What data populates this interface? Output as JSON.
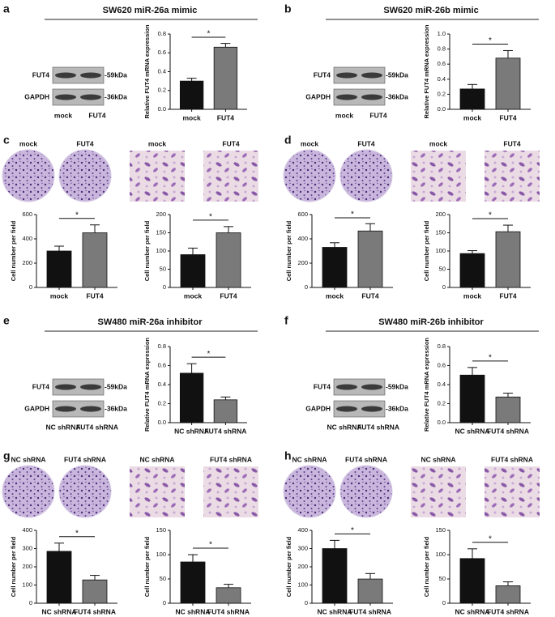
{
  "panels": [
    {
      "letter": "a",
      "title": "SW620 miR-26a mimic",
      "bands": [
        "FUT4",
        "GAPDH"
      ],
      "sizes": [
        "-59kDa",
        "-36kDa"
      ],
      "lanes": [
        "mock",
        "FUT4"
      ]
    },
    {
      "letter": "b",
      "title": "SW620 miR-26b mimic",
      "bands": [
        "FUT4",
        "GAPDH"
      ],
      "sizes": [
        "-59kDa",
        "-36kDa"
      ],
      "lanes": [
        "mock",
        "FUT4"
      ]
    },
    {
      "letter": "c",
      "image_labels": [
        "mock",
        "FUT4",
        "mock",
        "FUT4"
      ]
    },
    {
      "letter": "d",
      "image_labels": [
        "mock",
        "FUT4",
        "mock",
        "FUT4"
      ]
    },
    {
      "letter": "e",
      "title": "SW480 miR-26a inhibitor",
      "bands": [
        "FUT4",
        "GAPDH"
      ],
      "sizes": [
        "-59kDa",
        "-36kDa"
      ],
      "lanes": [
        "NC shRNA",
        "FUT4 shRNA"
      ]
    },
    {
      "letter": "f",
      "title": "SW480 miR-26b inhibitor",
      "bands": [
        "FUT4",
        "GAPDH"
      ],
      "sizes": [
        "-59kDa",
        "-36kDa"
      ],
      "lanes": [
        "NC shRNA",
        "FUT4 shRNA"
      ]
    },
    {
      "letter": "g",
      "image_labels": [
        "NC shRNA",
        "FUT4 shRNA",
        "NC shRNA",
        "FUT4 shRNA"
      ]
    },
    {
      "letter": "h",
      "image_labels": [
        "NC shRNA",
        "FUT4 shRNA",
        "NC shRNA",
        "FUT4 shRNA"
      ]
    }
  ],
  "chart_data": [
    {
      "type": "bar",
      "ylabel": "Relative FUT4 mRNA expression",
      "categories": [
        "mock",
        "FUT4"
      ],
      "values": [
        0.3,
        0.66
      ],
      "errors": [
        0.03,
        0.04
      ],
      "colors": [
        "#111111",
        "#7a7a7a"
      ],
      "annotation": "*",
      "ylim": [
        0,
        0.8
      ],
      "yticks": [
        {
          "value": 0,
          "label": "0.0"
        },
        {
          "value": 0.2,
          "label": "0.2"
        },
        {
          "value": 0.4,
          "label": "0.4"
        },
        {
          "value": 0.6,
          "label": "0.6"
        },
        {
          "value": 0.8,
          "label": "0.8"
        }
      ]
    },
    {
      "type": "bar",
      "ylabel": "Relative FUT4 mRNA expression",
      "categories": [
        "mock",
        "FUT4"
      ],
      "values": [
        0.27,
        0.68
      ],
      "errors": [
        0.06,
        0.1
      ],
      "colors": [
        "#111111",
        "#7a7a7a"
      ],
      "annotation": "*",
      "ylim": [
        0,
        1.0
      ],
      "yticks": [
        {
          "value": 0,
          "label": "0.0"
        },
        {
          "value": 0.2,
          "label": "0.2"
        },
        {
          "value": 0.4,
          "label": "0.4"
        },
        {
          "value": 0.6,
          "label": "0.6"
        },
        {
          "value": 0.8,
          "label": "0.8"
        },
        {
          "value": 1.0,
          "label": "1.0"
        }
      ]
    },
    {
      "type": "bar",
      "ylabel": "Cell number per field",
      "categories": [
        "mock",
        "FUT4"
      ],
      "values": [
        300,
        450
      ],
      "errors": [
        40,
        65
      ],
      "colors": [
        "#111111",
        "#7a7a7a"
      ],
      "annotation": "*",
      "ylim": [
        0,
        600
      ],
      "yticks": [
        0,
        200,
        400,
        600
      ]
    },
    {
      "type": "bar",
      "ylabel": "Cell number per field",
      "categories": [
        "mock",
        "FUT4"
      ],
      "values": [
        90,
        150
      ],
      "errors": [
        18,
        17
      ],
      "colors": [
        "#111111",
        "#7a7a7a"
      ],
      "annotation": "*",
      "ylim": [
        0,
        200
      ],
      "yticks": [
        0,
        50,
        100,
        150,
        200
      ]
    },
    {
      "type": "bar",
      "ylabel": "Cell number per field",
      "categories": [
        "mock",
        "FUT4"
      ],
      "values": [
        330,
        465
      ],
      "errors": [
        38,
        60
      ],
      "colors": [
        "#111111",
        "#7a7a7a"
      ],
      "annotation": "*",
      "ylim": [
        0,
        600
      ],
      "yticks": [
        0,
        200,
        400,
        600
      ]
    },
    {
      "type": "bar",
      "ylabel": "Cell number per field",
      "categories": [
        "mock",
        "FUT4"
      ],
      "values": [
        93,
        153
      ],
      "errors": [
        8,
        18
      ],
      "colors": [
        "#111111",
        "#7a7a7a"
      ],
      "annotation": "*",
      "ylim": [
        0,
        200
      ],
      "yticks": [
        0,
        50,
        100,
        150,
        200
      ]
    },
    {
      "type": "bar",
      "ylabel": "Relative FUT4 mRNA expression",
      "categories": [
        "NC shRNA",
        "FUT4 shRNA"
      ],
      "values": [
        0.52,
        0.24
      ],
      "errors": [
        0.1,
        0.03
      ],
      "colors": [
        "#111111",
        "#7a7a7a"
      ],
      "annotation": "*",
      "ylim": [
        0,
        0.8
      ],
      "yticks": [
        {
          "value": 0,
          "label": "0.0"
        },
        {
          "value": 0.2,
          "label": "0.2"
        },
        {
          "value": 0.4,
          "label": "0.4"
        },
        {
          "value": 0.6,
          "label": "0.6"
        },
        {
          "value": 0.8,
          "label": "0.8"
        }
      ]
    },
    {
      "type": "bar",
      "ylabel": "Relative FUT4 mRNA expression",
      "categories": [
        "NC shRNA",
        "FUT4 shRNA"
      ],
      "values": [
        0.5,
        0.27
      ],
      "errors": [
        0.08,
        0.04
      ],
      "colors": [
        "#111111",
        "#7a7a7a"
      ],
      "annotation": "*",
      "ylim": [
        0,
        0.8
      ],
      "yticks": [
        {
          "value": 0,
          "label": "0.0"
        },
        {
          "value": 0.2,
          "label": "0.2"
        },
        {
          "value": 0.4,
          "label": "0.4"
        },
        {
          "value": 0.6,
          "label": "0.6"
        },
        {
          "value": 0.8,
          "label": "0.8"
        }
      ]
    },
    {
      "type": "bar",
      "ylabel": "Cell number per field",
      "categories": [
        "NC shRNA",
        "FUT4 shRNA"
      ],
      "values": [
        285,
        128
      ],
      "errors": [
        45,
        25
      ],
      "colors": [
        "#111111",
        "#7a7a7a"
      ],
      "annotation": "*",
      "ylim": [
        0,
        400
      ],
      "yticks": [
        0,
        100,
        200,
        300,
        400
      ]
    },
    {
      "type": "bar",
      "ylabel": "Cell number per field",
      "categories": [
        "NC shRNA",
        "FUT4 shRNA"
      ],
      "values": [
        85,
        32
      ],
      "errors": [
        15,
        7
      ],
      "colors": [
        "#111111",
        "#7a7a7a"
      ],
      "annotation": "*",
      "ylim": [
        0,
        150
      ],
      "yticks": [
        0,
        50,
        100,
        150
      ]
    },
    {
      "type": "bar",
      "ylabel": "Cell number per field",
      "categories": [
        "NC shRNA",
        "FUT4 shRNA"
      ],
      "values": [
        300,
        133
      ],
      "errors": [
        45,
        30
      ],
      "colors": [
        "#111111",
        "#7a7a7a"
      ],
      "annotation": "*",
      "ylim": [
        0,
        400
      ],
      "yticks": [
        0,
        100,
        200,
        300,
        400
      ]
    },
    {
      "type": "bar",
      "ylabel": "Cell number per field",
      "categories": [
        "NC shRNA",
        "FUT4 shRNA"
      ],
      "values": [
        92,
        36
      ],
      "errors": [
        20,
        8
      ],
      "colors": [
        "#111111",
        "#7a7a7a"
      ],
      "annotation": "*",
      "ylim": [
        0,
        150
      ],
      "yticks": [
        0,
        50,
        100,
        150
      ]
    }
  ]
}
